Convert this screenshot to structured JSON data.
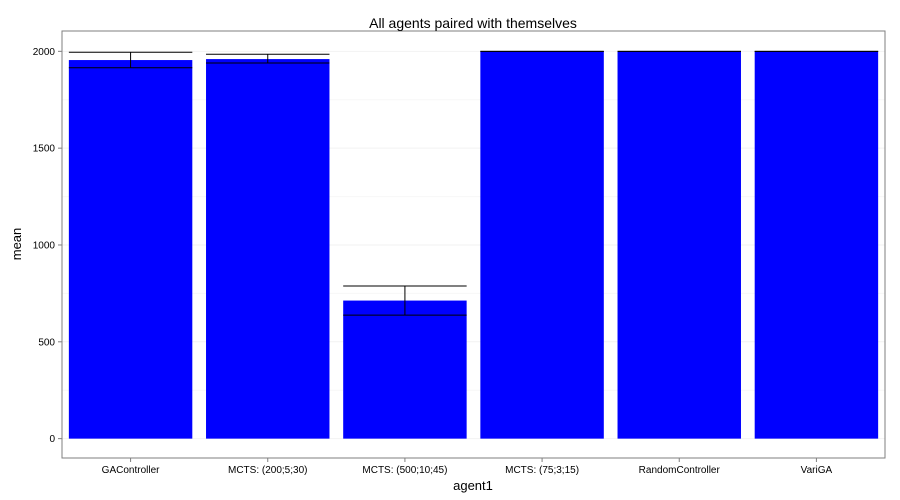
{
  "chart_data": {
    "type": "bar",
    "title": "All agents paired with themselves",
    "xlabel": "agent1",
    "ylabel": "mean",
    "categories": [
      "GAController",
      "MCTS: (200;5;30)",
      "MCTS: (500;10;45)",
      "MCTS: (75;3;15)",
      "RandomController",
      "VariGA"
    ],
    "values": [
      1955,
      1960,
      713,
      2000,
      2000,
      2000
    ],
    "error_low": [
      1915,
      1940,
      638,
      2000,
      2000,
      2000
    ],
    "error_high": [
      1995,
      1985,
      788,
      2000,
      2000,
      2000
    ],
    "ylim": [
      -100,
      2105
    ],
    "yticks": [
      0,
      500,
      1000,
      1500,
      2000
    ],
    "grid": true,
    "colors": {
      "bar": "#0000ff",
      "panel_border": "#7f7f7f",
      "grid": "#f2f2f2",
      "error_bar": "#000000"
    }
  }
}
